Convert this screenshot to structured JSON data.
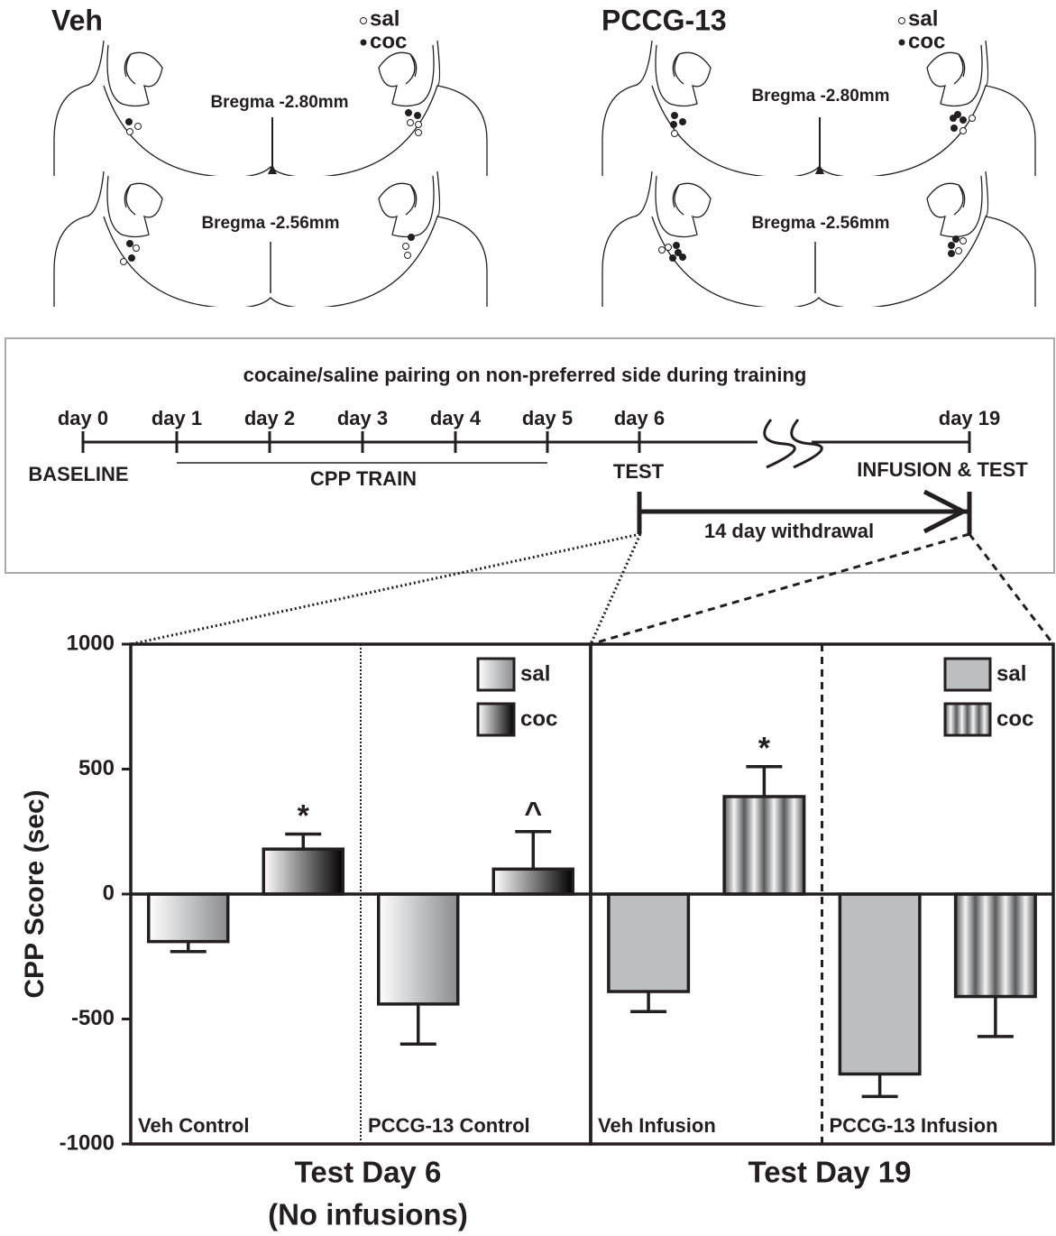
{
  "histology": {
    "panels": [
      {
        "title": "Veh",
        "legend": [
          "sal",
          "coc"
        ],
        "sections": [
          "Bregma -2.80mm",
          "Bregma -2.56mm"
        ]
      },
      {
        "title": "PCCG-13",
        "legend": [
          "sal",
          "coc"
        ],
        "sections": [
          "Bregma -2.80mm",
          "Bregma -2.56mm"
        ]
      }
    ]
  },
  "timeline": {
    "title": "cocaine/saline pairing on non-preferred side during training",
    "days": [
      "day 0",
      "day 1",
      "day 2",
      "day 3",
      "day 4",
      "day 5",
      "day 6",
      "day 19"
    ],
    "baseline": "BASELINE",
    "train": "CPP TRAIN",
    "test": "TEST",
    "infusion": "INFUSION & TEST",
    "withdrawal": "14 day withdrawal"
  },
  "chart_data": [
    {
      "type": "bar",
      "title": [
        "Test Day 6",
        "(No infusions)"
      ],
      "y_label": "CPP Score (sec)",
      "ylim": [
        -1000,
        1000
      ],
      "yticks": [
        -1000,
        -500,
        0,
        500,
        1000
      ],
      "categories": [
        "Veh Control",
        "PCCG-13 Control"
      ],
      "series": [
        {
          "name": "sal",
          "color": "#8a8c8e",
          "fill_style": "gradient",
          "values": [
            -190,
            -440
          ],
          "errors": [
            40,
            160
          ]
        },
        {
          "name": "coc",
          "color": "#000000",
          "fill_style": "gradient",
          "values": [
            180,
            100
          ],
          "errors": [
            60,
            150
          ],
          "sig_labels": [
            "*",
            "^"
          ]
        }
      ]
    },
    {
      "type": "bar",
      "title": [
        "Test Day 19"
      ],
      "ylim": [
        -1000,
        1000
      ],
      "categories": [
        "Veh Infusion",
        "PCCG-13 Infusion"
      ],
      "series": [
        {
          "name": "sal",
          "color": "#bcbec0",
          "fill_style": "flat",
          "values": [
            -390,
            -720
          ],
          "errors": [
            80,
            90
          ]
        },
        {
          "name": "coc",
          "color": "#58595b",
          "fill_style": "stripes",
          "values": [
            390,
            -410
          ],
          "errors": [
            120,
            160
          ],
          "sig_labels": [
            "*",
            null
          ]
        }
      ]
    }
  ]
}
